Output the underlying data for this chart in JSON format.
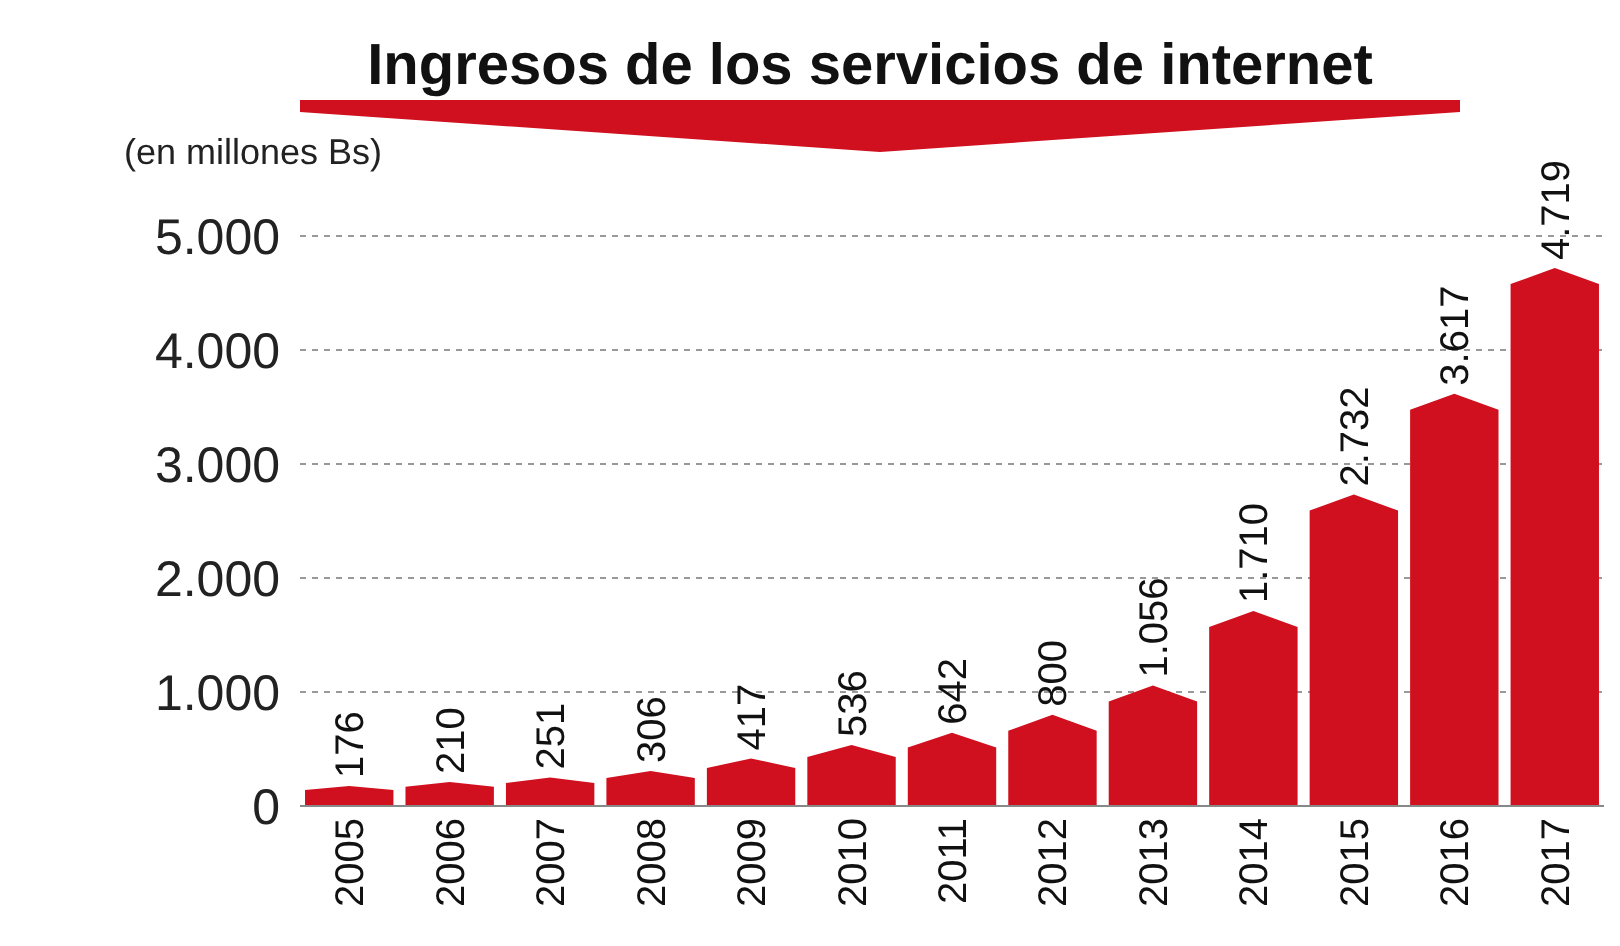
{
  "chart_data": {
    "type": "bar",
    "title": "Ingresos de los servicios de internet",
    "ylabel": "(en millones Bs)",
    "categories": [
      "2005",
      "2006",
      "2007",
      "2008",
      "2009",
      "2010",
      "2011",
      "2012",
      "2013",
      "2014",
      "2015",
      "2016",
      "2017"
    ],
    "values": [
      176,
      210,
      251,
      306,
      417,
      536,
      642,
      800,
      1056,
      1710,
      2732,
      3617,
      4719
    ],
    "value_labels": [
      "176",
      "210",
      "251",
      "306",
      "417",
      "536",
      "642",
      "800",
      "1.056",
      "1.710",
      "2.732",
      "3.617",
      "4.719"
    ],
    "color": "#d0101e",
    "ylim": [
      0,
      5000
    ],
    "yticks": [
      0,
      {
        "value": 1000,
        "label": "1.000"
      },
      {
        "value": 2000,
        "label": "2.000"
      },
      {
        "value": 3000,
        "label": "3.000"
      },
      {
        "value": 4000,
        "label": "4.000"
      },
      {
        "value": 5000,
        "label": "5.000"
      }
    ],
    "grid": "y"
  }
}
